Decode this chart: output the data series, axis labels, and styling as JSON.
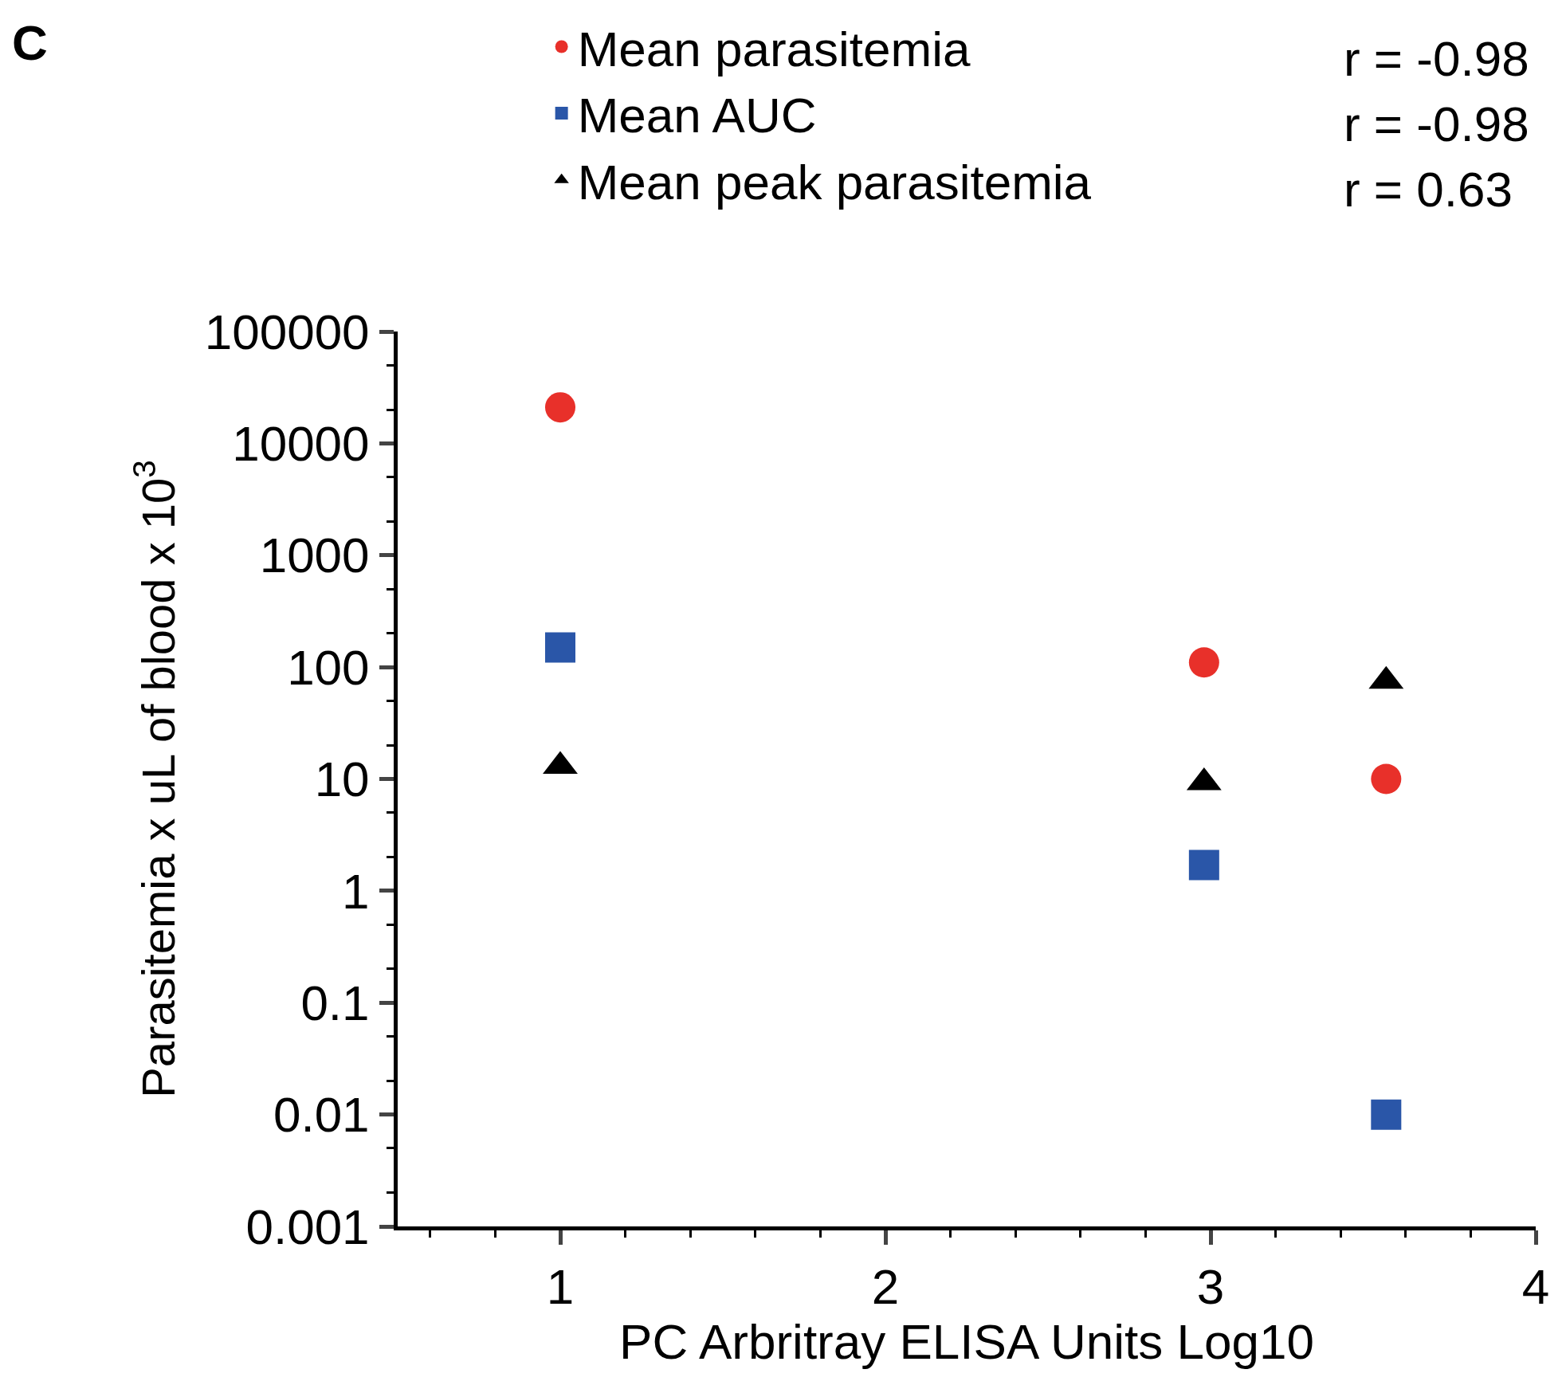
{
  "chart_data": {
    "type": "scatter",
    "xlabel": "PC Arbritray ELISA Units Log10",
    "ylabel": "Parasitemia x uL of blood x 10$^{3}$",
    "x": [
      1,
      2.98,
      3.54
    ],
    "series": [
      {
        "name": "Mean parasitemia",
        "color": "#e8302a",
        "marker": "circle",
        "values": [
          21000,
          110,
          10
        ]
      },
      {
        "name": "Mean AUC",
        "color": "#2a56a8",
        "marker": "square",
        "values": [
          150,
          1.7,
          0.01
        ]
      },
      {
        "name": "Mean peak parasitemia",
        "color": "#000000",
        "marker": "triangle",
        "values": [
          13,
          9.3,
          75
        ]
      }
    ],
    "annotations": [
      "C",
      "r = -0.98",
      "r = -0.98",
      "r = 0.63"
    ],
    "log": "y",
    "xlim": [
      0.5,
      4
    ],
    "xticks": [
      1,
      2,
      3,
      4
    ],
    "ylim": [
      0.001,
      100000
    ],
    "yticks": [
      0.001,
      0.01,
      0.1,
      1,
      10,
      100,
      1000,
      10000,
      100000
    ],
    "legend": "top"
  }
}
